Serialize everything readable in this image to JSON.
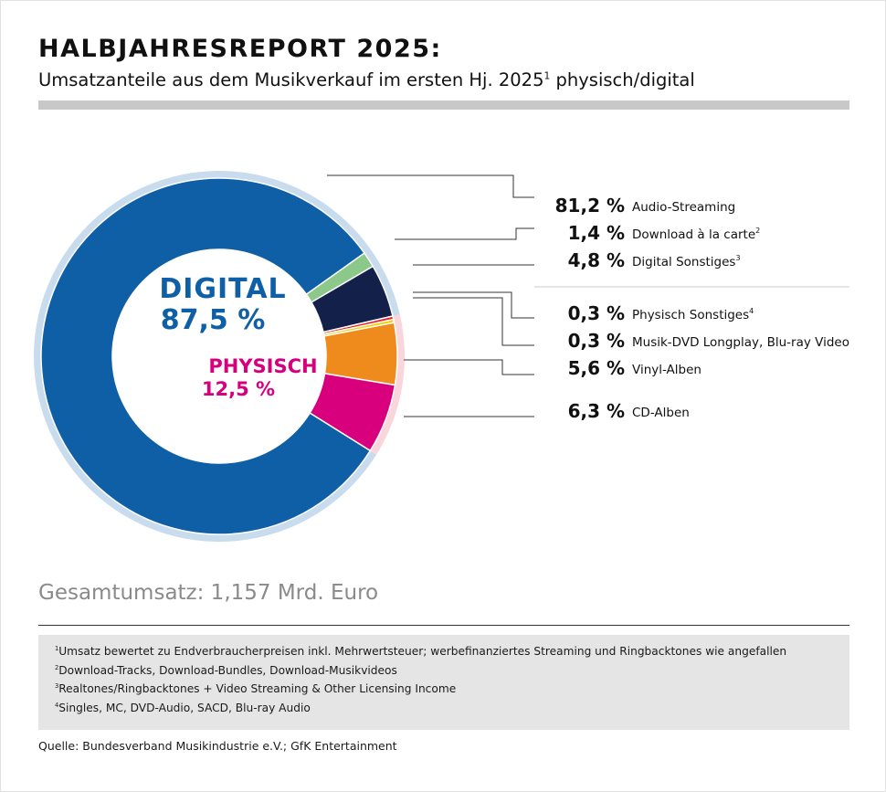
{
  "header": {
    "title": "HALBJAHRESREPORT 2025:",
    "subtitle": "Umsatzanteile aus dem Musikverkauf im ersten Hj. 2025",
    "subtitle_sup": "1",
    "subtitle_end": " physisch/digital"
  },
  "chart_data": {
    "type": "pie",
    "variant": "donut",
    "center_labels": [
      {
        "name": "DIGITAL",
        "value": "87,5 %",
        "color": "#0f5fa6"
      },
      {
        "name": "PHYSISCH",
        "value": "12,5 %",
        "color": "#d6007f"
      }
    ],
    "groups": [
      {
        "name": "digital",
        "total": 87.5,
        "ring_color": "#c9dcee"
      },
      {
        "name": "physisch",
        "total": 12.5,
        "ring_color": "#f8d6dc"
      }
    ],
    "slices": [
      {
        "label": "Audio-Streaming",
        "sup": "",
        "value": 81.2,
        "display": "81,2 %",
        "group": "digital",
        "color": "#0f5fa6"
      },
      {
        "label": "Download à la carte",
        "sup": "2",
        "value": 1.4,
        "display": "1,4 %",
        "group": "digital",
        "color": "#8cc88a"
      },
      {
        "label": "Digital Sonstiges",
        "sup": "3",
        "value": 4.8,
        "display": "4,8 %",
        "group": "digital",
        "color": "#13214a"
      },
      {
        "label": "Physisch Sonstiges",
        "sup": "4",
        "value": 0.3,
        "display": "0,3 %",
        "group": "physisch",
        "color": "#e8232b"
      },
      {
        "label": "Musik-DVD Longplay, Blu-ray Video",
        "sup": "",
        "value": 0.3,
        "display": "0,3 %",
        "group": "physisch",
        "color": "#f5d000"
      },
      {
        "label": "Vinyl-Alben",
        "sup": "",
        "value": 5.6,
        "display": "5,6 %",
        "group": "physisch",
        "color": "#ef8a1d"
      },
      {
        "label": "CD-Alben",
        "sup": "",
        "value": 6.3,
        "display": "6,3 %",
        "group": "physisch",
        "color": "#d9007e"
      }
    ]
  },
  "total": "Gesamtumsatz: 1,157 Mrd. Euro",
  "footnotes": [
    {
      "sup": "1",
      "text": "Umsatz bewertet zu Endverbraucherpreisen inkl. Mehrwertsteuer; werbefinanziertes Streaming und Ringbacktones wie angefallen"
    },
    {
      "sup": "2",
      "text": "Download-Tracks, Download-Bundles, Download-Musikvideos"
    },
    {
      "sup": "3",
      "text": "Realtones/Ringbacktones + Video Streaming & Other Licensing Income"
    },
    {
      "sup": "4",
      "text": "Singles, MC, DVD-Audio, SACD, Blu-ray Audio"
    }
  ],
  "source": "Quelle: Bundesverband Musikindustrie e.V.; GfK Entertainment"
}
